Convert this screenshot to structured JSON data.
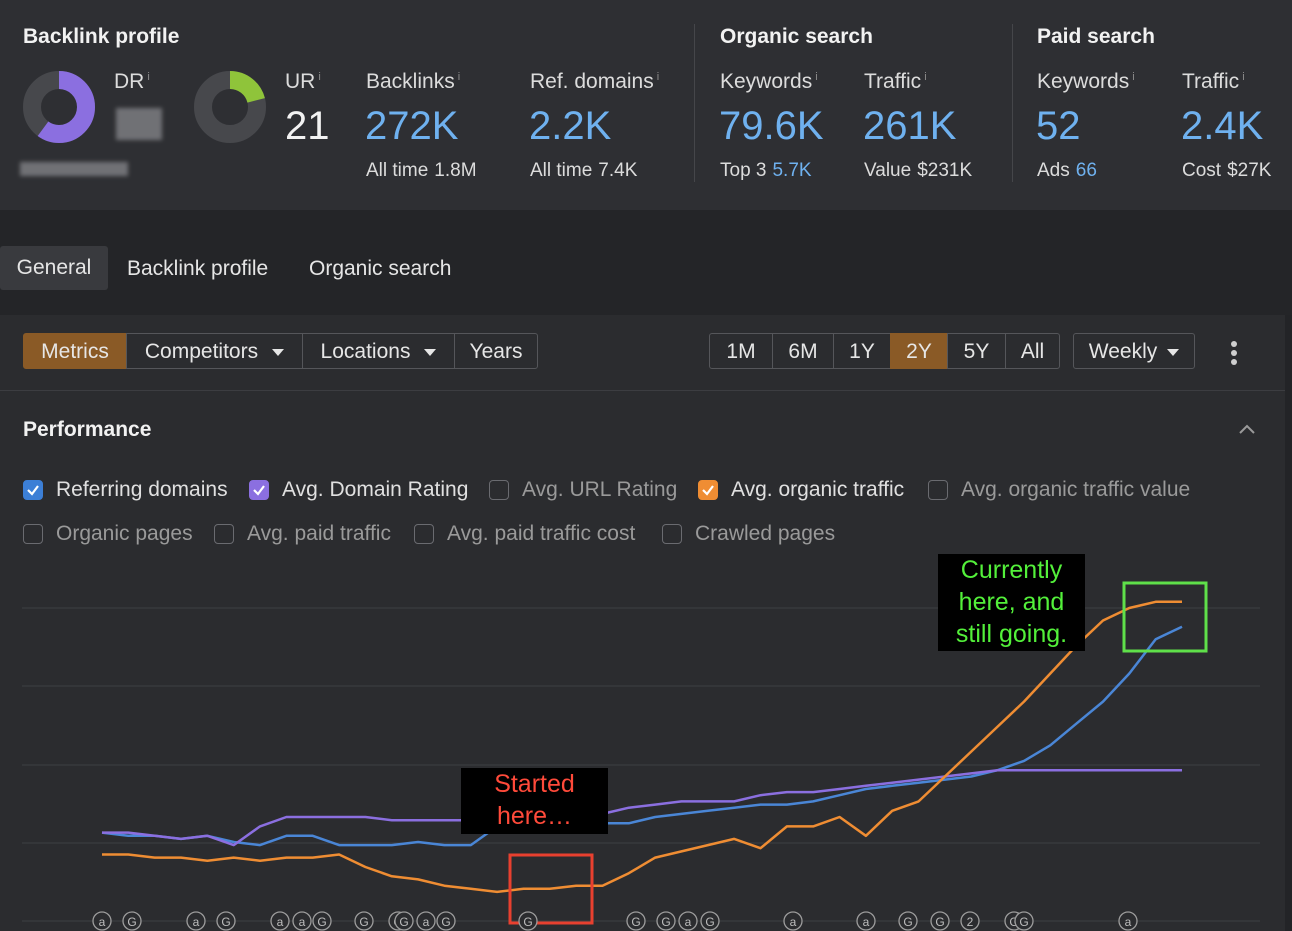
{
  "backlink_profile": {
    "title": "Backlink profile",
    "dr_label": "DR",
    "ur_label": "UR",
    "ur_value": "21",
    "backlinks_label": "Backlinks",
    "backlinks_value": "272K",
    "backlinks_sub_label": "All time",
    "backlinks_sub_value": "1.8M",
    "refdomains_label": "Ref. domains",
    "refdomains_value": "2.2K",
    "refdomains_sub_label": "All time",
    "refdomains_sub_value": "7.4K",
    "dr_ring_color": "#8b6fe0",
    "ur_ring_color": "#8fc43a",
    "dr_fill": 0.6,
    "ur_fill": 0.21
  },
  "organic_search": {
    "title": "Organic search",
    "keywords_label": "Keywords",
    "keywords_value": "79.6K",
    "keywords_sub_label": "Top 3",
    "keywords_sub_value": "5.7K",
    "traffic_label": "Traffic",
    "traffic_value": "261K",
    "traffic_sub_label": "Value",
    "traffic_sub_value": "$231K"
  },
  "paid_search": {
    "title": "Paid search",
    "keywords_label": "Keywords",
    "keywords_value": "52",
    "keywords_sub_label": "Ads",
    "keywords_sub_value": "66",
    "traffic_label": "Traffic",
    "traffic_value": "2.4K",
    "traffic_sub_label": "Cost",
    "traffic_sub_value": "$27K"
  },
  "tabs": [
    {
      "label": "General",
      "active": true
    },
    {
      "label": "Backlink profile"
    },
    {
      "label": "Organic search"
    }
  ],
  "toolbar": {
    "metrics": "Metrics",
    "competitors": "Competitors",
    "locations": "Locations",
    "years": "Years",
    "ranges": [
      "1M",
      "6M",
      "1Y",
      "2Y",
      "5Y",
      "All"
    ],
    "active_range": "2Y",
    "interval": "Weekly"
  },
  "performance": {
    "title": "Performance",
    "checkboxes": [
      {
        "label": "Referring domains",
        "checked": true,
        "color": "#3c7fd6"
      },
      {
        "label": "Avg. Domain Rating",
        "checked": true,
        "color": "#8b6fe0"
      },
      {
        "label": "Avg. URL Rating",
        "checked": false
      },
      {
        "label": "Avg. organic traffic",
        "checked": true,
        "color": "#ef8d33"
      },
      {
        "label": "Avg. organic traffic value",
        "checked": false
      },
      {
        "label": "Organic pages",
        "checked": false
      },
      {
        "label": "Avg. paid traffic",
        "checked": false
      },
      {
        "label": "Avg. paid traffic cost",
        "checked": false
      },
      {
        "label": "Crawled pages",
        "checked": false
      }
    ]
  },
  "annotations": {
    "start_line1": "Started",
    "start_line2": "here…",
    "now_line1": "Currently",
    "now_line2": "here, and",
    "now_line3": "still going."
  },
  "chart_data": {
    "type": "line",
    "title": "",
    "xlabel": "",
    "ylabel": "",
    "grid": true,
    "note": "Relative values over 2 years, weekly (axis values not shown)",
    "series": [
      {
        "name": "Referring domains",
        "color": "#4a86d6",
        "values": [
          28,
          27,
          27,
          26,
          27,
          25,
          24,
          27,
          27,
          24,
          24,
          24,
          25,
          24,
          24,
          30,
          31,
          31,
          31,
          31,
          31,
          33,
          34,
          35,
          36,
          37,
          37,
          38,
          40,
          42,
          43,
          44,
          45,
          46,
          48,
          51,
          56,
          63,
          70,
          79,
          90,
          94
        ]
      },
      {
        "name": "Avg. Domain Rating",
        "color": "#8b6fe0",
        "values": [
          28,
          28,
          27,
          26,
          27,
          24,
          30,
          33,
          33,
          33,
          33,
          32,
          32,
          32,
          32,
          32,
          32,
          32,
          33,
          34,
          36,
          37,
          38,
          38,
          38,
          40,
          41,
          41,
          42,
          43,
          44,
          45,
          46,
          47,
          48,
          48,
          48,
          48,
          48,
          48,
          48,
          48
        ]
      },
      {
        "name": "Avg. organic traffic",
        "color": "#ef8d33",
        "values": [
          21,
          21,
          20,
          20,
          19,
          20,
          19,
          20,
          20,
          21,
          17,
          14,
          13,
          11,
          10,
          9,
          10,
          10,
          11,
          11,
          15,
          20,
          22,
          24,
          26,
          23,
          30,
          30,
          33,
          27,
          35,
          38,
          46,
          54,
          62,
          70,
          79,
          88,
          96,
          100,
          102,
          102
        ]
      }
    ],
    "timeline_markers": [
      "a",
      "G",
      "a",
      "G",
      "a",
      "a",
      "G",
      "G",
      "G",
      "G",
      "a",
      "G",
      "G",
      "G",
      "G",
      "a",
      "G",
      "a",
      "a",
      "G",
      "G",
      "2",
      "G",
      "G",
      "a"
    ]
  }
}
